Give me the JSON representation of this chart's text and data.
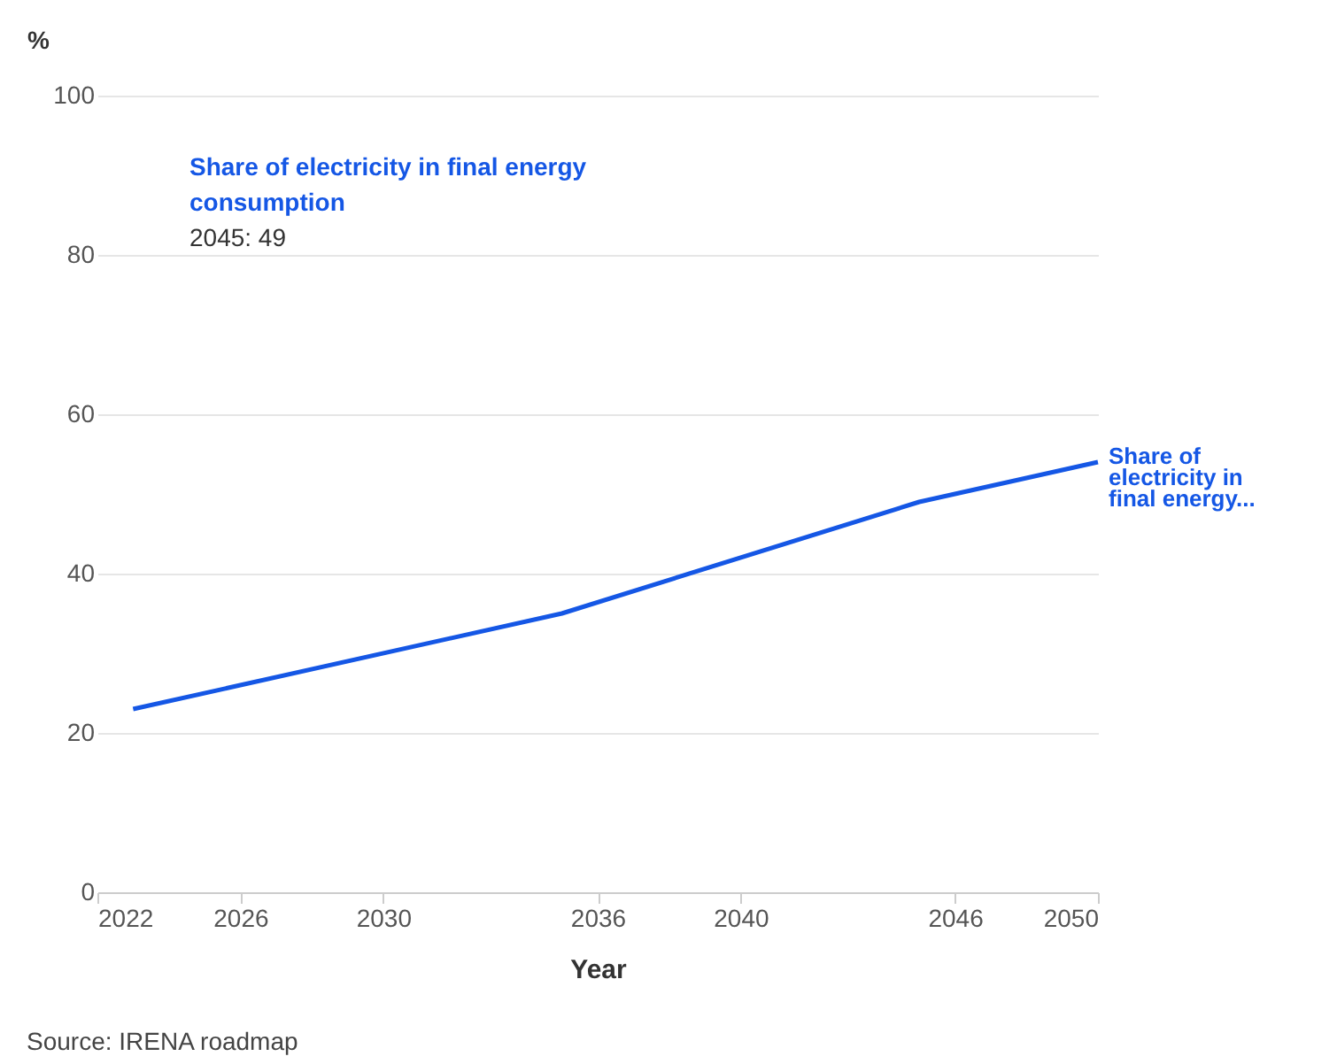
{
  "chart_data": {
    "type": "line",
    "xlabel": "Year",
    "ylabel": "%",
    "x": [
      2023,
      2035,
      2045,
      2050
    ],
    "series": [
      {
        "name": "Share of electricity in final energy...",
        "color": "#1557e5",
        "values": [
          23,
          35,
          49,
          54
        ]
      }
    ],
    "xlim": [
      2022,
      2050
    ],
    "xticks": [
      2022,
      2026,
      2030,
      2036,
      2040,
      2046,
      2050
    ],
    "ylim": [
      0,
      100
    ],
    "yticks": [
      0,
      20,
      40,
      60,
      80,
      100
    ],
    "grid": "y",
    "legend": false,
    "marker": "none",
    "line_style": "solid",
    "annotations": [
      "Share of electricity in final energy consumption",
      "2045: 49",
      "Source: IRENA roadmap"
    ]
  }
}
